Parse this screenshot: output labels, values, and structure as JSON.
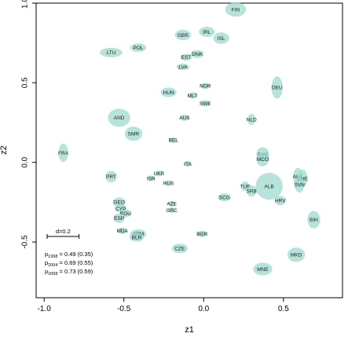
{
  "chart_data": {
    "type": "scatter",
    "xlabel": "z1",
    "ylabel": "z2",
    "xlim": [
      -1.05,
      0.87
    ],
    "ylim": [
      -0.85,
      1.0
    ],
    "x_ticks": [
      -1.0,
      -0.5,
      0.0,
      0.5
    ],
    "y_ticks": [
      -0.5,
      0.0,
      0.5,
      1.0
    ],
    "x_tick_labels": [
      "-1.0",
      "-0.5",
      "0.0",
      "0.5"
    ],
    "y_tick_labels": [
      "-0.5",
      "0.0",
      "0.5",
      "1.0"
    ],
    "marker_color": "#9fd9cf",
    "label_color": "#222222",
    "scale_bar": {
      "label": "d=0.2",
      "length": 0.2
    },
    "annotations": [
      {
        "main": "p",
        "sub": "1998",
        "text": " = 0.49 (0.35)"
      },
      {
        "main": "p",
        "sub": "2004",
        "text": " = 0.69 (0.55)"
      },
      {
        "main": "p",
        "sub": "2008",
        "text": " = 0.73 (0.59)"
      }
    ],
    "points": [
      {
        "label": "FIN",
        "x": 0.2,
        "y": 0.96,
        "rx": 0.065,
        "ry": 0.045
      },
      {
        "label": "GBR",
        "x": -0.13,
        "y": 0.8,
        "rx": 0.05,
        "ry": 0.033
      },
      {
        "label": "IRL",
        "x": 0.02,
        "y": 0.82,
        "rx": 0.05,
        "ry": 0.032
      },
      {
        "label": "ISL",
        "x": 0.11,
        "y": 0.78,
        "rx": 0.05,
        "ry": 0.036
      },
      {
        "label": "POL",
        "x": -0.41,
        "y": 0.72,
        "rx": 0.05,
        "ry": 0.027
      },
      {
        "label": "LTU",
        "x": -0.58,
        "y": 0.69,
        "rx": 0.07,
        "ry": 0.03
      },
      {
        "label": "DNK",
        "x": -0.04,
        "y": 0.68,
        "rx": 0.04,
        "ry": 0.025
      },
      {
        "label": "EST",
        "x": -0.11,
        "y": 0.66,
        "rx": 0.035,
        "ry": 0.022
      },
      {
        "label": "LVA",
        "x": -0.13,
        "y": 0.6,
        "rx": 0.04,
        "ry": 0.02
      },
      {
        "label": "NOR",
        "x": 0.01,
        "y": 0.48,
        "rx": 0.03,
        "ry": 0.02
      },
      {
        "label": "DEU",
        "x": 0.46,
        "y": 0.47,
        "rx": 0.035,
        "ry": 0.07
      },
      {
        "label": "HUN",
        "x": -0.22,
        "y": 0.44,
        "rx": 0.05,
        "ry": 0.03
      },
      {
        "label": "MLT",
        "x": -0.07,
        "y": 0.42,
        "rx": 0.03,
        "ry": 0.02
      },
      {
        "label": "SWE",
        "x": 0.01,
        "y": 0.37,
        "rx": 0.03,
        "ry": 0.02
      },
      {
        "label": "AND",
        "x": -0.53,
        "y": 0.28,
        "rx": 0.07,
        "ry": 0.057
      },
      {
        "label": "AUS",
        "x": -0.12,
        "y": 0.28,
        "rx": 0.03,
        "ry": 0.02
      },
      {
        "label": "NLD",
        "x": 0.3,
        "y": 0.27,
        "rx": 0.025,
        "ry": 0.035
      },
      {
        "label": "SMR",
        "x": -0.44,
        "y": 0.18,
        "rx": 0.055,
        "ry": 0.045
      },
      {
        "label": "BEL",
        "x": -0.19,
        "y": 0.14,
        "rx": 0.025,
        "ry": 0.018
      },
      {
        "label": "FRA",
        "x": -0.88,
        "y": 0.06,
        "rx": 0.03,
        "ry": 0.058
      },
      {
        "label": "SVK",
        "x": 0.37,
        "y": 0.05,
        "rx": 0.04,
        "ry": 0.045
      },
      {
        "label": "MCO",
        "x": 0.37,
        "y": 0.02,
        "rx": 0.04,
        "ry": 0.045
      },
      {
        "label": "ITA",
        "x": -0.1,
        "y": -0.01,
        "rx": 0.025,
        "ry": 0.018
      },
      {
        "label": "UKR",
        "x": -0.28,
        "y": -0.07,
        "rx": 0.025,
        "ry": 0.018
      },
      {
        "label": "ISR",
        "x": -0.33,
        "y": -0.1,
        "rx": 0.025,
        "ry": 0.018
      },
      {
        "label": "PRT",
        "x": -0.58,
        "y": -0.09,
        "rx": 0.035,
        "ry": 0.037
      },
      {
        "label": "AUT",
        "x": 0.59,
        "y": -0.09,
        "rx": 0.03,
        "ry": 0.055
      },
      {
        "label": "CHE",
        "x": 0.62,
        "y": -0.1,
        "rx": 0.03,
        "ry": 0.055
      },
      {
        "label": "SVN",
        "x": 0.6,
        "y": -0.14,
        "rx": 0.03,
        "ry": 0.05
      },
      {
        "label": "ALB",
        "x": 0.41,
        "y": -0.15,
        "rx": 0.085,
        "ry": 0.085
      },
      {
        "label": "RUS",
        "x": -0.22,
        "y": -0.13,
        "rx": 0.025,
        "ry": 0.018
      },
      {
        "label": "TUR",
        "x": 0.26,
        "y": -0.15,
        "rx": 0.025,
        "ry": 0.03
      },
      {
        "label": "SRB",
        "x": 0.3,
        "y": -0.18,
        "rx": 0.03,
        "ry": 0.035
      },
      {
        "label": "SCG",
        "x": 0.13,
        "y": -0.22,
        "rx": 0.04,
        "ry": 0.025
      },
      {
        "label": "HRV",
        "x": 0.48,
        "y": -0.24,
        "rx": 0.035,
        "ry": 0.03
      },
      {
        "label": "GEO",
        "x": -0.53,
        "y": -0.25,
        "rx": 0.04,
        "ry": 0.03
      },
      {
        "label": "AZE",
        "x": -0.2,
        "y": -0.26,
        "rx": 0.025,
        "ry": 0.018
      },
      {
        "label": "CYP",
        "x": -0.52,
        "y": -0.29,
        "rx": 0.035,
        "ry": 0.025
      },
      {
        "label": "ROU",
        "x": -0.49,
        "y": -0.32,
        "rx": 0.035,
        "ry": 0.025
      },
      {
        "label": "GRC",
        "x": -0.2,
        "y": -0.3,
        "rx": 0.025,
        "ry": 0.018
      },
      {
        "label": "ESP",
        "x": -0.53,
        "y": -0.35,
        "rx": 0.035,
        "ry": 0.03
      },
      {
        "label": "BIH",
        "x": 0.69,
        "y": -0.36,
        "rx": 0.04,
        "ry": 0.055
      },
      {
        "label": "MDA",
        "x": -0.51,
        "y": -0.43,
        "rx": 0.03,
        "ry": 0.02
      },
      {
        "label": "ARM",
        "x": -0.41,
        "y": -0.45,
        "rx": 0.05,
        "ry": 0.03
      },
      {
        "label": "BLR",
        "x": -0.42,
        "y": -0.47,
        "rx": 0.045,
        "ry": 0.028
      },
      {
        "label": "BGR",
        "x": -0.01,
        "y": -0.45,
        "rx": 0.03,
        "ry": 0.02
      },
      {
        "label": "CZE",
        "x": -0.15,
        "y": -0.54,
        "rx": 0.05,
        "ry": 0.03
      },
      {
        "label": "MKD",
        "x": 0.58,
        "y": -0.58,
        "rx": 0.055,
        "ry": 0.045
      },
      {
        "label": "MNE",
        "x": 0.37,
        "y": -0.67,
        "rx": 0.06,
        "ry": 0.04
      }
    ]
  }
}
